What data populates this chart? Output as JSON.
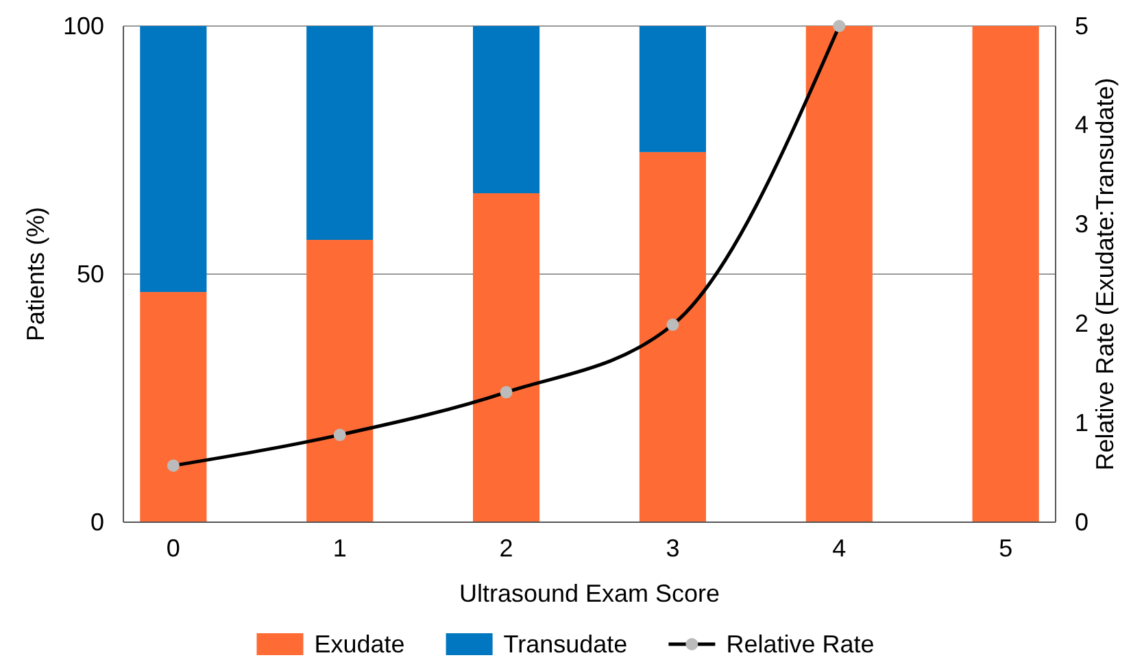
{
  "chart_data": {
    "type": "bar",
    "stacked": true,
    "xlabel": "Ultrasound Exam Score",
    "ylabel": "Patients (%)",
    "y2label": "Relative Rate (Exudate:Transudate)",
    "categories": [
      "0",
      "1",
      "2",
      "3",
      "4",
      "5"
    ],
    "series": [
      {
        "name": "Exudate",
        "color": "#ff6b35",
        "values": [
          46.4,
          56.9,
          66.3,
          74.6,
          100,
          100
        ]
      },
      {
        "name": "Transudate",
        "color": "#0077c0",
        "values": [
          53.6,
          43.1,
          33.7,
          25.4,
          0,
          0
        ]
      },
      {
        "name": "Relative Rate",
        "type": "line",
        "axis": "y2",
        "color": "#000000",
        "values": [
          0.57,
          0.88,
          1.31,
          1.99,
          5,
          null
        ]
      }
    ],
    "ylim": [
      0,
      100
    ],
    "yticks": [
      0,
      50,
      100
    ],
    "y2lim": [
      0,
      5
    ],
    "y2ticks": [
      0,
      1,
      2,
      3,
      4,
      5
    ],
    "grid": "y",
    "legend": "bottom",
    "marker": "circle"
  }
}
